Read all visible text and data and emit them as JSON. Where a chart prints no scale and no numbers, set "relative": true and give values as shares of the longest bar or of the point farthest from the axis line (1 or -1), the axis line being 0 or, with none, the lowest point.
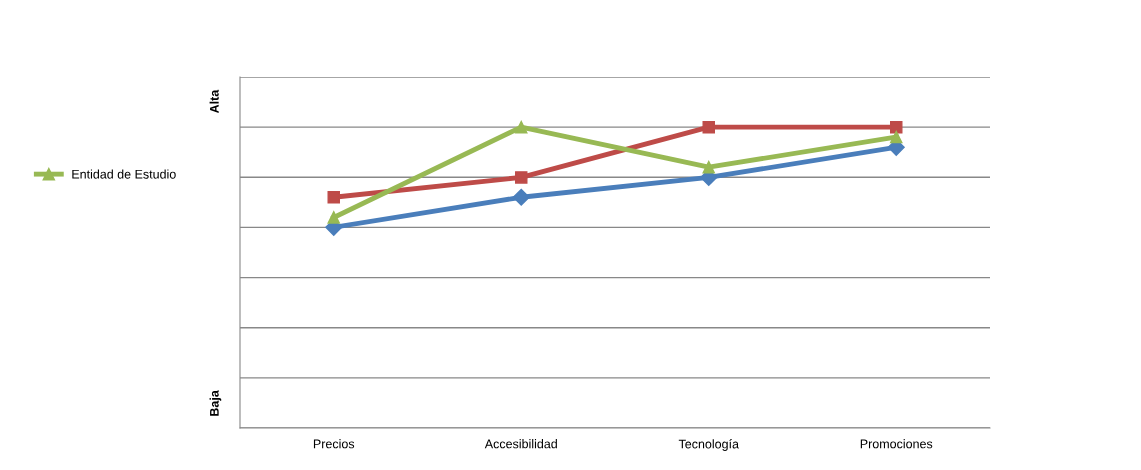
{
  "chart_data": {
    "type": "line",
    "relative": true,
    "categories": [
      "Precios",
      "Accesibilidad",
      "Tecnología",
      "Promociones"
    ],
    "series": [
      {
        "color": "#4a7ebb",
        "marker": "diamond",
        "values": [
          0.667,
          0.767,
          0.833,
          0.933
        ]
      },
      {
        "color": "#be4b48",
        "marker": "square",
        "values": [
          0.767,
          0.833,
          1,
          1
        ]
      },
      {
        "name": "Entidad de Estudio",
        "color": "#98b954",
        "marker": "triangle",
        "values": [
          0.7,
          1,
          0.867,
          0.967
        ]
      }
    ],
    "annotations": [
      "Alta",
      "Baja"
    ],
    "grid": "y",
    "legend": "left",
    "line_style": "solid"
  }
}
